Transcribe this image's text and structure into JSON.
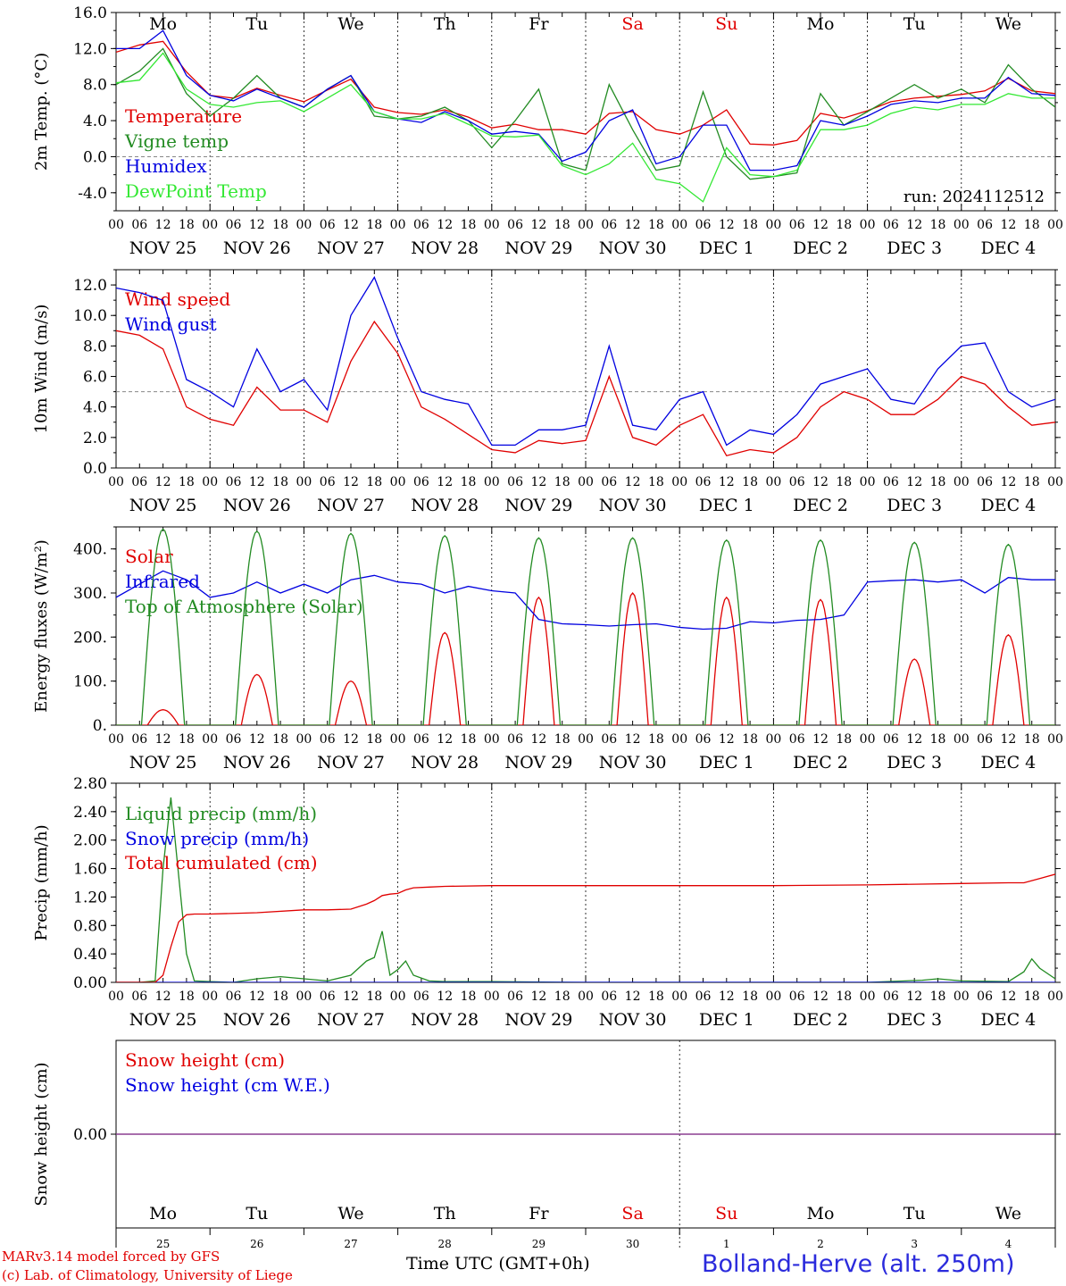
{
  "chart_data": [
    {
      "type": "line",
      "ylabel": "2m Temp. (°C)",
      "ylim": [
        -6,
        16
      ],
      "yticks": [
        "16.0",
        "12.0",
        "8.0",
        "4.0",
        "0.0",
        "-4.0"
      ],
      "ytick_values": [
        16,
        12,
        8,
        4,
        0,
        -4
      ],
      "zero_line": 0,
      "day_names": [
        "Mo",
        "Tu",
        "We",
        "Th",
        "Fr",
        "Sa",
        "Su",
        "Mo",
        "Tu",
        "We"
      ],
      "day_name_colors": [
        "#000000",
        "#000000",
        "#000000",
        "#000000",
        "#000000",
        "#e00000",
        "#e00000",
        "#000000",
        "#000000",
        "#000000"
      ],
      "run_label": "run: 2024112512",
      "x_hours": [
        0,
        6,
        12,
        18,
        24,
        30,
        36,
        42,
        48,
        54,
        60,
        66,
        72,
        78,
        84,
        90,
        96,
        102,
        108,
        114,
        120,
        126,
        132,
        138,
        144,
        150,
        156,
        162,
        168,
        174,
        180,
        186,
        192,
        198,
        204,
        210,
        216,
        222,
        228,
        234,
        240
      ],
      "series": [
        {
          "name": "Temperature",
          "color": "#e00000",
          "values": [
            11.6,
            12.4,
            12.8,
            9.4,
            6.8,
            6.5,
            7.6,
            6.8,
            6.1,
            7.4,
            8.6,
            5.5,
            4.9,
            4.7,
            5.2,
            4.4,
            3.2,
            3.6,
            3.0,
            3.0,
            2.5,
            4.8,
            5.0,
            3.0,
            2.5,
            3.5,
            5.2,
            1.4,
            1.3,
            1.8,
            4.8,
            4.3,
            5.1,
            6.1,
            6.5,
            6.7,
            6.9,
            7.3,
            8.7,
            7.3,
            7.0
          ]
        },
        {
          "name": "Vigne temp",
          "color": "#228b22",
          "values": [
            8.0,
            9.5,
            12.0,
            7.0,
            4.5,
            6.5,
            9.0,
            6.5,
            5.5,
            7.5,
            9.0,
            4.5,
            4.2,
            4.5,
            5.5,
            4.0,
            1.0,
            4.0,
            7.5,
            -0.8,
            -1.5,
            8.0,
            3.0,
            -1.5,
            -1.0,
            7.2,
            0.0,
            -2.5,
            -2.2,
            -1.8,
            7.0,
            3.5,
            5.0,
            6.5,
            8.0,
            6.5,
            7.5,
            6.0,
            10.2,
            7.5,
            5.5
          ]
        },
        {
          "name": "Humidex",
          "color": "#0000e0",
          "values": [
            12.0,
            12.0,
            14.0,
            9.0,
            6.8,
            6.2,
            7.5,
            6.5,
            5.5,
            7.5,
            9.0,
            5.0,
            4.2,
            3.8,
            5.0,
            4.0,
            2.5,
            2.8,
            2.5,
            -0.5,
            0.5,
            4.0,
            5.2,
            -0.8,
            0.0,
            3.5,
            3.5,
            -1.5,
            -1.5,
            -1.0,
            4.0,
            3.5,
            4.5,
            5.8,
            6.2,
            6.0,
            6.5,
            6.5,
            8.8,
            7.0,
            6.8
          ]
        },
        {
          "name": "DewPoint Temp",
          "color": "#33e833",
          "values": [
            8.2,
            8.5,
            11.5,
            7.5,
            5.8,
            5.5,
            6.0,
            6.2,
            5.0,
            6.5,
            8.0,
            5.0,
            4.2,
            4.2,
            4.8,
            3.6,
            2.3,
            2.2,
            2.4,
            -1.0,
            -2.0,
            -0.8,
            1.5,
            -2.5,
            -3.0,
            -5.0,
            1.0,
            -2.0,
            -2.2,
            -1.5,
            3.0,
            3.0,
            3.5,
            4.8,
            5.5,
            5.2,
            5.8,
            5.8,
            7.0,
            6.5,
            6.5
          ]
        }
      ]
    },
    {
      "type": "line",
      "ylabel": "10m Wind (m/s)",
      "ylim": [
        0,
        13
      ],
      "yticks": [
        "12.0",
        "10.0",
        "8.0",
        "6.0",
        "4.0",
        "2.0",
        "0.0"
      ],
      "ytick_values": [
        12,
        10,
        8,
        6,
        4,
        2,
        0
      ],
      "ref_line": 5,
      "x_hours": [
        0,
        6,
        12,
        18,
        24,
        30,
        36,
        42,
        48,
        54,
        60,
        66,
        72,
        78,
        84,
        90,
        96,
        102,
        108,
        114,
        120,
        126,
        132,
        138,
        144,
        150,
        156,
        162,
        168,
        174,
        180,
        186,
        192,
        198,
        204,
        210,
        216,
        222,
        228,
        234,
        240
      ],
      "series": [
        {
          "name": "Wind speed",
          "color": "#e00000",
          "values": [
            9.0,
            8.7,
            7.8,
            4.0,
            3.2,
            2.8,
            5.3,
            3.8,
            3.8,
            3.0,
            7.0,
            9.6,
            7.5,
            4.0,
            3.2,
            2.2,
            1.2,
            1.0,
            1.8,
            1.6,
            1.8,
            6.0,
            2.0,
            1.5,
            2.8,
            3.5,
            0.8,
            1.2,
            1.0,
            2.0,
            4.0,
            5.0,
            4.5,
            3.5,
            3.5,
            4.5,
            6.0,
            5.5,
            4.0,
            2.8,
            3.0
          ]
        },
        {
          "name": "Wind gust",
          "color": "#0000e0",
          "values": [
            11.8,
            11.5,
            11.0,
            5.8,
            5.0,
            4.0,
            7.8,
            5.0,
            5.8,
            3.8,
            10.0,
            12.5,
            8.5,
            5.0,
            4.5,
            4.2,
            1.5,
            1.5,
            2.5,
            2.5,
            2.8,
            8.0,
            2.8,
            2.5,
            4.5,
            5.0,
            1.5,
            2.5,
            2.2,
            3.5,
            5.5,
            6.0,
            6.5,
            4.5,
            4.2,
            6.5,
            8.0,
            8.2,
            5.0,
            4.0,
            4.5
          ]
        }
      ]
    },
    {
      "type": "line",
      "ylabel": "Energy fluxes (W/m²)",
      "ylim": [
        0,
        450
      ],
      "yticks": [
        "400.",
        "300.",
        "200.",
        "100.",
        "0."
      ],
      "ytick_values": [
        400,
        300,
        200,
        100,
        0
      ],
      "peak_days": [
        0,
        1,
        2,
        3,
        4,
        5,
        6,
        7,
        8,
        9
      ],
      "peaks": {
        "Solar": [
          35,
          115,
          100,
          210,
          290,
          300,
          290,
          285,
          150,
          205
        ],
        "Top of Atmosphere (Solar)": [
          445,
          440,
          435,
          430,
          425,
          425,
          420,
          420,
          415,
          410
        ]
      },
      "series": [
        {
          "name": "Solar",
          "color": "#e00000"
        },
        {
          "name": "Infrared",
          "color": "#0000e0",
          "x_hours": [
            0,
            6,
            12,
            18,
            24,
            30,
            36,
            42,
            48,
            54,
            60,
            66,
            72,
            78,
            84,
            90,
            96,
            102,
            108,
            114,
            120,
            126,
            132,
            138,
            144,
            150,
            156,
            162,
            168,
            174,
            180,
            186,
            192,
            198,
            204,
            210,
            216,
            222,
            228,
            234,
            240
          ],
          "values": [
            290,
            320,
            350,
            330,
            290,
            300,
            325,
            300,
            320,
            300,
            330,
            340,
            325,
            320,
            300,
            315,
            305,
            300,
            240,
            230,
            228,
            225,
            228,
            230,
            222,
            218,
            220,
            235,
            232,
            238,
            240,
            250,
            325,
            328,
            330,
            325,
            330,
            300,
            335,
            330,
            330
          ]
        },
        {
          "name": "Top of Atmosphere (Solar)",
          "color": "#228b22"
        }
      ]
    },
    {
      "type": "line",
      "ylabel": "Precip (mm/h)",
      "ylim": [
        0,
        2.8
      ],
      "yticks": [
        "2.80",
        "2.40",
        "2.00",
        "1.60",
        "1.20",
        "0.80",
        "0.40",
        "0.00"
      ],
      "ytick_values": [
        2.8,
        2.4,
        2.0,
        1.6,
        1.2,
        0.8,
        0.4,
        0.0
      ],
      "series": [
        {
          "name": "Liquid precip (mm/h)",
          "color": "#228b22",
          "x_hours": [
            0,
            6,
            10,
            12,
            14,
            16,
            18,
            20,
            24,
            30,
            36,
            42,
            48,
            54,
            60,
            64,
            66,
            68,
            70,
            72,
            74,
            76,
            80,
            84,
            96,
            120,
            144,
            168,
            192,
            206,
            210,
            216,
            228,
            232,
            234,
            236,
            240
          ],
          "values": [
            0,
            0,
            0.02,
            1.6,
            2.6,
            1.5,
            0.4,
            0.02,
            0.01,
            0,
            0.05,
            0.08,
            0.05,
            0.02,
            0.1,
            0.3,
            0.35,
            0.72,
            0.1,
            0.18,
            0.3,
            0.1,
            0.02,
            0.01,
            0.01,
            0,
            0,
            0,
            0,
            0.03,
            0.05,
            0.02,
            0.01,
            0.15,
            0.33,
            0.2,
            0.05
          ]
        },
        {
          "name": "Snow precip (mm/h)",
          "color": "#0000e0",
          "x_hours": [
            0,
            240
          ],
          "values": [
            0,
            0
          ]
        },
        {
          "name": "Total cumulated (cm)",
          "color": "#e00000",
          "x_hours": [
            0,
            10,
            12,
            14,
            16,
            18,
            20,
            24,
            36,
            48,
            54,
            60,
            64,
            66,
            68,
            70,
            72,
            74,
            76,
            80,
            84,
            96,
            120,
            144,
            168,
            192,
            204,
            216,
            228,
            232,
            236,
            240
          ],
          "values": [
            0,
            0,
            0.1,
            0.5,
            0.85,
            0.95,
            0.96,
            0.96,
            0.98,
            1.02,
            1.02,
            1.03,
            1.1,
            1.15,
            1.22,
            1.24,
            1.25,
            1.3,
            1.33,
            1.34,
            1.35,
            1.36,
            1.36,
            1.36,
            1.36,
            1.37,
            1.38,
            1.39,
            1.4,
            1.4,
            1.46,
            1.52
          ]
        }
      ]
    },
    {
      "type": "line",
      "ylabel": "Snow height (cm)",
      "ylim": [
        -1,
        1
      ],
      "yticks": [
        "0.00"
      ],
      "ytick_values": [
        0
      ],
      "series": [
        {
          "name": "Snow height (cm)",
          "color": "#e00000",
          "x_hours": [
            0,
            240
          ],
          "values": [
            0,
            0
          ]
        },
        {
          "name": "Snow height (cm W.E.)",
          "color": "#0000e0",
          "x_hours": [
            0,
            240
          ],
          "values": [
            0,
            0
          ]
        }
      ],
      "day_names": [
        "Mo",
        "Tu",
        "We",
        "Th",
        "Fr",
        "Sa",
        "Su",
        "Mo",
        "Tu",
        "We"
      ],
      "day_name_colors": [
        "#000000",
        "#000000",
        "#000000",
        "#000000",
        "#000000",
        "#e00000",
        "#e00000",
        "#000000",
        "#000000",
        "#000000"
      ],
      "day_numbers": [
        "25",
        "26",
        "27",
        "28",
        "29",
        "30",
        "1",
        "2",
        "3",
        "4"
      ],
      "month_labels": [
        "NOV",
        "DEC"
      ]
    }
  ],
  "axis": {
    "hour_ticks": [
      "00",
      "06",
      "12",
      "18"
    ],
    "hour_end": "00",
    "date_labels": [
      "NOV 25",
      "NOV 26",
      "NOV 27",
      "NOV 28",
      "NOV 29",
      "NOV 30",
      "DEC  1",
      "DEC  2",
      "DEC  3",
      "DEC  4"
    ]
  },
  "footer": {
    "model": "MARv3.14 model forced by GFS",
    "credit": "(c) Lab. of Climatology, University of Liege",
    "xlabel": "Time UTC (GMT+0h)",
    "station": "Bolland-Herve (alt. 250m)"
  }
}
